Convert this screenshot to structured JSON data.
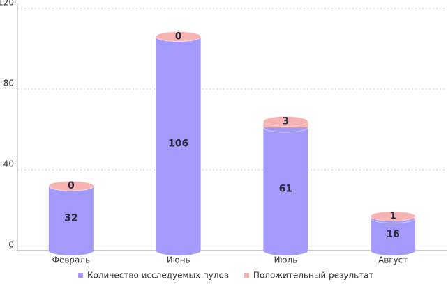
{
  "chart_data": {
    "type": "bar",
    "stacked": true,
    "categories": [
      "Февраль",
      "Июнь",
      "Июль",
      "Август"
    ],
    "series": [
      {
        "name": "Количество исследуемых пулов",
        "color": "#a39afc",
        "values": [
          32,
          106,
          61,
          16
        ]
      },
      {
        "name": "Положительный результат",
        "color": "#f6b3b1",
        "values": [
          0,
          0,
          3,
          1
        ]
      }
    ],
    "ylim": [
      0,
      120
    ],
    "yticks": [
      0,
      40,
      80,
      120
    ],
    "grid": true
  }
}
